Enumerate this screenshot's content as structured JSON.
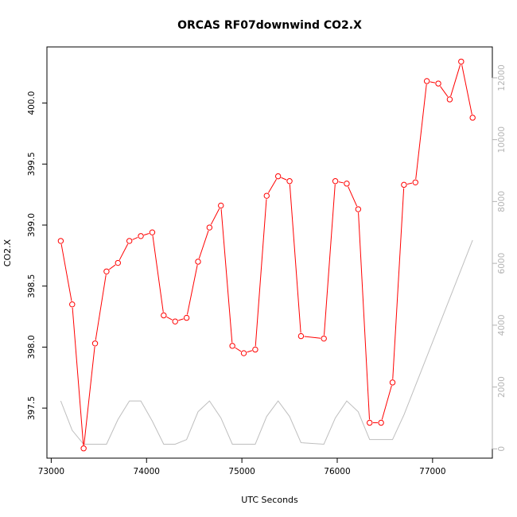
{
  "chart_data": {
    "type": "line",
    "title": "ORCAS RF07downwind CO2.X",
    "xlabel": "UTC Seconds",
    "ylabel": "CO2.X",
    "xlim": [
      72955,
      77627
    ],
    "ylim": [
      397.09,
      400.46
    ],
    "y2lim": [
      -300,
      13000
    ],
    "xticks": [
      73000,
      74000,
      75000,
      76000,
      77000
    ],
    "yticks": [
      397.5,
      398.0,
      398.5,
      399.0,
      399.5,
      400.0
    ],
    "y2ticks": [
      0,
      2000,
      4000,
      6000,
      8000,
      10000,
      12000
    ],
    "grid": false,
    "series": [
      {
        "axis": "left",
        "color": "#ff0000",
        "marker": "open-circle",
        "x": [
          73100,
          73220,
          73340,
          73460,
          73580,
          73700,
          73820,
          73940,
          74060,
          74180,
          74300,
          74420,
          74540,
          74660,
          74780,
          74900,
          75020,
          75140,
          75260,
          75380,
          75500,
          75620,
          75860,
          75980,
          76100,
          76220,
          76340,
          76460,
          76580,
          76700,
          76820,
          76940,
          77060,
          77180,
          77300,
          77420
        ],
        "values": [
          398.87,
          398.35,
          397.17,
          398.03,
          398.62,
          398.69,
          398.87,
          398.91,
          398.94,
          398.26,
          398.21,
          398.24,
          398.7,
          398.98,
          399.16,
          398.01,
          397.95,
          397.98,
          399.24,
          399.4,
          399.36,
          398.09,
          398.07,
          399.36,
          399.34,
          399.13,
          397.38,
          397.38,
          397.71,
          399.33,
          399.35,
          400.18,
          400.16,
          400.03,
          400.34,
          399.88
        ]
      },
      {
        "axis": "right",
        "color": "#bebebe",
        "x": [
          73100,
          73220,
          73340,
          73460,
          73580,
          73700,
          73820,
          73940,
          74060,
          74180,
          74300,
          74420,
          74540,
          74660,
          74780,
          74900,
          75020,
          75140,
          75260,
          75380,
          75500,
          75620,
          75860,
          75980,
          76100,
          76220,
          76340,
          76460,
          76580,
          76700,
          77420
        ],
        "values": [
          1550,
          600,
          150,
          150,
          150,
          950,
          1550,
          1550,
          900,
          150,
          150,
          300,
          1200,
          1550,
          1000,
          150,
          150,
          150,
          1050,
          1550,
          1050,
          200,
          150,
          1000,
          1550,
          1200,
          300,
          300,
          300,
          1100,
          6750
        ]
      }
    ]
  }
}
